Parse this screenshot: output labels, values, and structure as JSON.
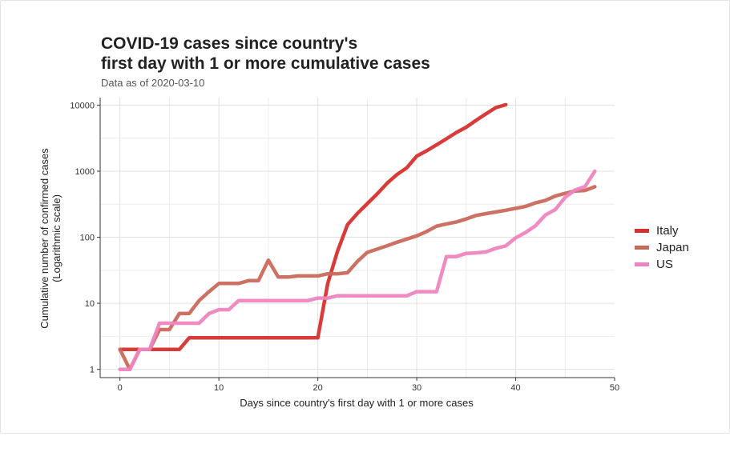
{
  "chart_data": {
    "type": "line",
    "title_line1": "COVID-19 cases since country's",
    "title_line2": "first day with 1 or more cumulative cases",
    "subtitle": "Data as of 2020-03-10",
    "xlabel": "Days since country's first day with 1 or more cases",
    "ylabel_line1": "Cumulative number of confirmed cases",
    "ylabel_line2": "(Logarithmic scale)",
    "y_scale": "log10",
    "xlim": [
      -2,
      50
    ],
    "ylim": [
      0.75,
      13000
    ],
    "x_ticks": [
      0,
      10,
      20,
      30,
      40,
      50
    ],
    "x_tick_labels": [
      "0",
      "10",
      "20",
      "30",
      "40",
      "50"
    ],
    "y_ticks": [
      1,
      10,
      100,
      1000,
      10000
    ],
    "y_tick_labels": [
      "1",
      "10",
      "100",
      "1000",
      "10000"
    ],
    "grid": true,
    "legend_position": "right",
    "series": [
      {
        "name": "Italy",
        "color": "#d7312d",
        "x": [
          0,
          1,
          2,
          3,
          4,
          5,
          6,
          7,
          8,
          9,
          10,
          11,
          12,
          13,
          14,
          15,
          16,
          17,
          18,
          19,
          20,
          21,
          22,
          23,
          24,
          25,
          26,
          27,
          28,
          29,
          30,
          31,
          32,
          33,
          34,
          35,
          36,
          37,
          38,
          39
        ],
        "y": [
          2,
          2,
          2,
          2,
          2,
          2,
          2,
          3,
          3,
          3,
          3,
          3,
          3,
          3,
          3,
          3,
          3,
          3,
          3,
          3,
          3,
          20,
          62,
          155,
          229,
          322,
          453,
          655,
          888,
          1128,
          1694,
          2036,
          2502,
          3089,
          3858,
          4636,
          5883,
          7375,
          9172,
          10149
        ]
      },
      {
        "name": "Japan",
        "color": "#c9695c",
        "x": [
          0,
          1,
          2,
          3,
          4,
          5,
          6,
          7,
          8,
          9,
          10,
          11,
          12,
          13,
          14,
          15,
          16,
          17,
          18,
          19,
          20,
          21,
          22,
          23,
          24,
          25,
          26,
          27,
          28,
          29,
          30,
          31,
          32,
          33,
          34,
          35,
          36,
          37,
          38,
          39,
          40,
          41,
          42,
          43,
          44,
          45,
          46,
          47,
          48
        ],
        "y": [
          2,
          1,
          2,
          2,
          4,
          4,
          7,
          7,
          11,
          15,
          20,
          20,
          20,
          22,
          22,
          45,
          25,
          25,
          26,
          26,
          26,
          28,
          28,
          29,
          43,
          59,
          66,
          74,
          84,
          94,
          105,
          122,
          147,
          159,
          170,
          189,
          214,
          228,
          241,
          256,
          274,
          293,
          331,
          360,
          420,
          461,
          502,
          511,
          581
        ]
      },
      {
        "name": "US",
        "color": "#ef84c0",
        "x": [
          0,
          1,
          2,
          3,
          4,
          5,
          6,
          7,
          8,
          9,
          10,
          11,
          12,
          13,
          14,
          15,
          16,
          17,
          18,
          19,
          20,
          21,
          22,
          23,
          24,
          25,
          26,
          27,
          28,
          29,
          30,
          31,
          32,
          33,
          34,
          35,
          36,
          37,
          38,
          39,
          40,
          41,
          42,
          43,
          44,
          45,
          46,
          47,
          48
        ],
        "y": [
          1,
          1,
          2,
          2,
          5,
          5,
          5,
          5,
          5,
          7,
          8,
          8,
          11,
          11,
          11,
          11,
          11,
          11,
          11,
          11,
          12,
          12,
          13,
          13,
          13,
          13,
          13,
          13,
          13,
          13,
          15,
          15,
          15,
          51,
          51,
          57,
          58,
          60,
          68,
          74,
          98,
          118,
          149,
          217,
          262,
          402,
          518,
          583,
          1000
        ]
      }
    ]
  }
}
